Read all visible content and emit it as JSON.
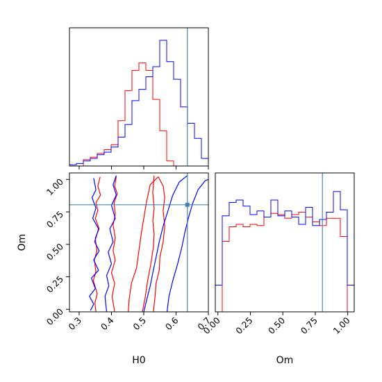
{
  "colors": {
    "series_a": "#ff0000",
    "series_b": "#0000ff",
    "truth": "#4682b4",
    "frame": "#000000"
  },
  "chart_data": [
    {
      "panel": "top-left",
      "type": "histogram",
      "title": "",
      "xlabel": "",
      "ylabel": "",
      "xlim": [
        0.27,
        0.7
      ],
      "xticks": [
        0.3,
        0.4,
        0.5,
        0.6,
        0.7
      ],
      "xtick_labels_shown": false,
      "yticks_shown": false,
      "truth_x": 0.635,
      "bin_edges": [
        0.27,
        0.2915,
        0.313,
        0.3345,
        0.356,
        0.3775,
        0.399,
        0.4205,
        0.442,
        0.4635,
        0.485,
        0.5065,
        0.528,
        0.5495,
        0.571,
        0.5925,
        0.614,
        0.6355,
        0.657,
        0.6785,
        0.7
      ],
      "series": [
        {
          "name": "",
          "color": "red",
          "values": [
            0.0,
            0.0,
            0.05,
            0.07,
            0.1,
            0.13,
            0.17,
            0.36,
            0.6,
            0.76,
            0.82,
            0.76,
            0.53,
            0.28,
            0.04,
            0.0,
            0.0,
            0.0,
            0.0,
            0.0
          ]
        },
        {
          "name": "",
          "color": "blue",
          "values": [
            0.01,
            0.02,
            0.04,
            0.06,
            0.09,
            0.11,
            0.15,
            0.23,
            0.33,
            0.52,
            0.61,
            0.71,
            0.79,
            1.0,
            0.83,
            0.69,
            0.47,
            0.34,
            0.22,
            0.06
          ]
        }
      ]
    },
    {
      "panel": "bottom-left",
      "type": "contour",
      "title": "",
      "xlabel": "H0",
      "ylabel": "Om",
      "xlim": [
        0.27,
        0.7
      ],
      "ylim": [
        -0.02,
        1.05
      ],
      "xticks": [
        0.3,
        0.4,
        0.5,
        0.6,
        0.7
      ],
      "xtick_labels": [
        "0.3",
        "0.4",
        "0.5",
        "0.6",
        "0.7"
      ],
      "yticks": [
        0.0,
        0.25,
        0.5,
        0.75,
        1.0
      ],
      "ytick_labels": [
        "0.00",
        "0.25",
        "0.50",
        "0.75",
        "1.00"
      ],
      "truth": {
        "x": 0.635,
        "y": 0.805
      },
      "series": [
        {
          "name": "",
          "color": "red",
          "contours": [
            [
              [
                0.352,
                -0.02
              ],
              [
                0.349,
                0.05
              ],
              [
                0.356,
                0.12
              ],
              [
                0.344,
                0.22
              ],
              [
                0.352,
                0.29
              ],
              [
                0.347,
                0.38
              ],
              [
                0.355,
                0.45
              ],
              [
                0.35,
                0.55
              ],
              [
                0.362,
                0.62
              ],
              [
                0.35,
                0.7
              ],
              [
                0.358,
                0.76
              ],
              [
                0.352,
                0.82
              ],
              [
                0.366,
                0.88
              ],
              [
                0.358,
                0.95
              ],
              [
                0.365,
                1.02
              ]
            ],
            [
              [
                0.415,
                1.02
              ],
              [
                0.41,
                0.95
              ],
              [
                0.418,
                0.89
              ],
              [
                0.408,
                0.82
              ],
              [
                0.412,
                0.73
              ],
              [
                0.405,
                0.65
              ],
              [
                0.412,
                0.55
              ],
              [
                0.405,
                0.45
              ],
              [
                0.412,
                0.38
              ],
              [
                0.4,
                0.28
              ],
              [
                0.41,
                0.2
              ],
              [
                0.402,
                0.1
              ],
              [
                0.41,
                -0.02
              ]
            ],
            [
              [
                0.452,
                -0.02
              ],
              [
                0.455,
                0.08
              ],
              [
                0.462,
                0.2
              ],
              [
                0.478,
                0.32
              ],
              [
                0.485,
                0.45
              ],
              [
                0.492,
                0.58
              ],
              [
                0.5,
                0.7
              ],
              [
                0.508,
                0.82
              ],
              [
                0.52,
                0.96
              ],
              [
                0.545,
                1.02
              ],
              [
                0.56,
                0.95
              ],
              [
                0.565,
                0.86
              ],
              [
                0.56,
                0.76
              ],
              [
                0.565,
                0.64
              ],
              [
                0.56,
                0.52
              ],
              [
                0.55,
                0.4
              ],
              [
                0.548,
                0.3
              ],
              [
                0.538,
                0.2
              ],
              [
                0.535,
                0.1
              ],
              [
                0.53,
                -0.02
              ]
            ],
            [
              [
                0.496,
                -0.02
              ],
              [
                0.505,
                0.1
              ],
              [
                0.512,
                0.22
              ],
              [
                0.522,
                0.35
              ],
              [
                0.53,
                0.48
              ],
              [
                0.532,
                0.58
              ],
              [
                0.528,
                0.68
              ],
              [
                0.532,
                0.78
              ],
              [
                0.528,
                0.9
              ],
              [
                0.532,
                1.03
              ]
            ]
          ]
        },
        {
          "name": "",
          "color": "blue",
          "contours": [
            [
              [
                0.345,
                1.01
              ],
              [
                0.352,
                0.92
              ],
              [
                0.34,
                0.86
              ],
              [
                0.352,
                0.78
              ],
              [
                0.342,
                0.7
              ],
              [
                0.36,
                0.62
              ],
              [
                0.348,
                0.52
              ],
              [
                0.362,
                0.45
              ],
              [
                0.345,
                0.38
              ],
              [
                0.36,
                0.3
              ],
              [
                0.338,
                0.24
              ],
              [
                0.35,
                0.16
              ],
              [
                0.332,
                0.1
              ],
              [
                0.345,
                0.04
              ],
              [
                0.335,
                -0.01
              ]
            ],
            [
              [
                0.415,
                1.03
              ],
              [
                0.405,
                0.96
              ],
              [
                0.415,
                0.88
              ],
              [
                0.4,
                0.8
              ],
              [
                0.412,
                0.7
              ],
              [
                0.395,
                0.62
              ],
              [
                0.405,
                0.52
              ],
              [
                0.39,
                0.44
              ],
              [
                0.4,
                0.35
              ],
              [
                0.385,
                0.26
              ],
              [
                0.392,
                0.18
              ],
              [
                0.38,
                0.1
              ],
              [
                0.385,
                -0.02
              ]
            ],
            [
              [
                0.5,
                -0.02
              ],
              [
                0.51,
                0.08
              ],
              [
                0.52,
                0.18
              ],
              [
                0.528,
                0.28
              ],
              [
                0.538,
                0.4
              ],
              [
                0.548,
                0.52
              ],
              [
                0.56,
                0.64
              ],
              [
                0.575,
                0.76
              ],
              [
                0.59,
                0.88
              ],
              [
                0.61,
                0.98
              ],
              [
                0.635,
                1.03
              ]
            ],
            [
              [
                0.572,
                -0.02
              ],
              [
                0.578,
                0.1
              ],
              [
                0.59,
                0.22
              ],
              [
                0.605,
                0.35
              ],
              [
                0.618,
                0.48
              ],
              [
                0.628,
                0.6
              ],
              [
                0.64,
                0.72
              ],
              [
                0.652,
                0.82
              ],
              [
                0.668,
                0.92
              ],
              [
                0.69,
                0.99
              ],
              [
                0.7,
                1.0
              ]
            ]
          ]
        }
      ]
    },
    {
      "panel": "bottom-right",
      "type": "histogram",
      "title": "",
      "xlabel": "Om",
      "ylabel": "",
      "xlim": [
        -0.02,
        1.05
      ],
      "xticks": [
        0.0,
        0.25,
        0.5,
        0.75,
        1.0
      ],
      "xtick_labels": [
        "0.00",
        "0.25",
        "0.50",
        "0.75",
        "1.00"
      ],
      "yticks_shown": false,
      "truth_x": 0.805,
      "bin_edges": [
        -0.02,
        0.0335,
        0.087,
        0.1405,
        0.194,
        0.2475,
        0.301,
        0.3545,
        0.408,
        0.4615,
        0.515,
        0.5685,
        0.622,
        0.6755,
        0.729,
        0.7825,
        0.836,
        0.8895,
        0.943,
        0.9965,
        1.05
      ],
      "series": [
        {
          "name": "",
          "color": "red",
          "values": [
            0.0,
            0.58,
            0.7,
            0.72,
            0.7,
            0.72,
            0.71,
            0.78,
            0.81,
            0.8,
            0.77,
            0.8,
            0.82,
            0.78,
            0.74,
            0.71,
            0.77,
            0.77,
            0.62,
            0.0
          ]
        },
        {
          "name": "",
          "color": "blue",
          "values": [
            0.22,
            0.79,
            0.9,
            0.92,
            0.87,
            0.8,
            0.83,
            0.78,
            0.92,
            0.79,
            0.83,
            0.78,
            0.72,
            0.86,
            0.71,
            0.76,
            0.82,
            0.99,
            0.84,
            0.22
          ]
        }
      ]
    }
  ]
}
